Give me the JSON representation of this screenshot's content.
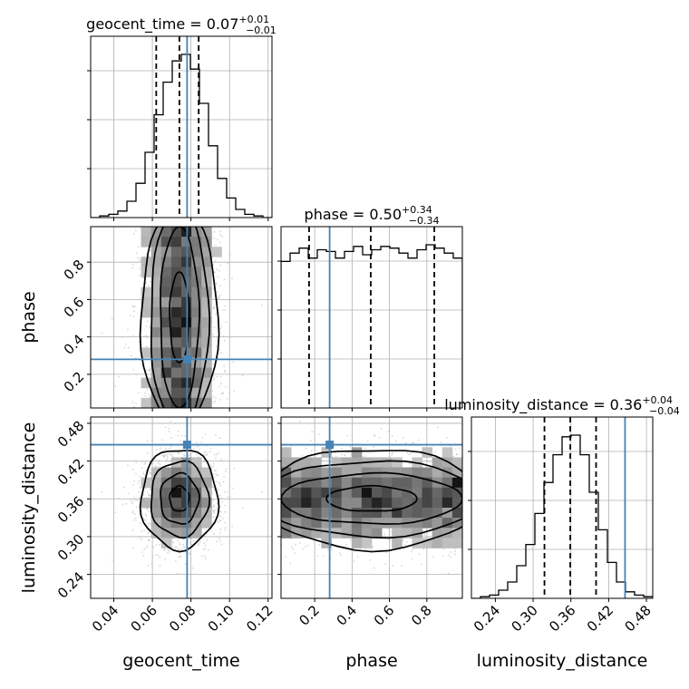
{
  "chart_data": {
    "type": "corner",
    "parameters": [
      "geocent_time",
      "phase",
      "luminosity_distance"
    ],
    "axis_labels": [
      "geocent_time",
      "phase",
      "luminosity_distance"
    ],
    "ranges": {
      "geocent_time": [
        0.028,
        0.122
      ],
      "phase": [
        0.02,
        0.99
      ],
      "luminosity_distance": [
        0.202,
        0.49
      ]
    },
    "ticks": {
      "geocent_time": [
        0.04,
        0.06,
        0.08,
        0.1,
        0.12
      ],
      "phase": [
        0.2,
        0.4,
        0.6,
        0.8
      ],
      "luminosity_distance": [
        0.24,
        0.3,
        0.36,
        0.42,
        0.48
      ]
    },
    "tick_labels": {
      "geocent_time": [
        "0.04",
        "0.06",
        "0.08",
        "0.10",
        "0.12"
      ],
      "phase": [
        "0.2",
        "0.4",
        "0.6",
        "0.8"
      ],
      "luminosity_distance": [
        "0.24",
        "0.30",
        "0.36",
        "0.42",
        "0.48"
      ]
    },
    "titles": [
      {
        "param": "geocent_time",
        "text": "geocent_time = 0.07",
        "sup": "+0.01",
        "sub": "−0.01"
      },
      {
        "param": "phase",
        "text": "phase = 0.50",
        "sup": "+0.34",
        "sub": "−0.34"
      },
      {
        "param": "luminosity_distance",
        "text": "luminosity_distance = 0.36",
        "sup": "+0.04",
        "sub": "−0.04"
      }
    ],
    "truths": {
      "geocent_time": 0.078,
      "phase": 0.28,
      "luminosity_distance": 0.446
    },
    "quantiles": {
      "geocent_time": [
        0.062,
        0.074,
        0.084
      ],
      "phase": [
        0.17,
        0.5,
        0.84
      ],
      "luminosity_distance": [
        0.318,
        0.359,
        0.4
      ]
    },
    "histograms": {
      "geocent_time": {
        "x": [
          0.028,
          0.0327,
          0.0374,
          0.0421,
          0.0468,
          0.0515,
          0.0562,
          0.0609,
          0.0656,
          0.0703,
          0.075,
          0.0797,
          0.0844,
          0.0891,
          0.0938,
          0.0985,
          0.1032,
          0.1079,
          0.1126,
          0.1173
        ],
        "density": [
          0.0,
          0.01,
          0.02,
          0.04,
          0.1,
          0.21,
          0.4,
          0.63,
          0.83,
          0.96,
          1.0,
          0.91,
          0.7,
          0.44,
          0.24,
          0.12,
          0.05,
          0.02,
          0.01,
          0.0
        ]
      },
      "phase": {
        "x": [
          0.02,
          0.0685,
          0.117,
          0.1655,
          0.214,
          0.2625,
          0.311,
          0.3595,
          0.408,
          0.4565,
          0.505,
          0.5535,
          0.602,
          0.6505,
          0.699,
          0.7475,
          0.796,
          0.8445,
          0.893,
          0.9415
        ],
        "density": [
          0.88,
          0.93,
          0.96,
          0.9,
          0.95,
          0.94,
          0.9,
          0.94,
          0.97,
          0.92,
          0.95,
          0.97,
          0.96,
          0.93,
          0.9,
          0.95,
          0.98,
          0.96,
          0.93,
          0.9
        ]
      },
      "luminosity_distance": {
        "x": [
          0.202,
          0.2164,
          0.2308,
          0.2452,
          0.2596,
          0.274,
          0.2884,
          0.3028,
          0.3172,
          0.3316,
          0.346,
          0.3604,
          0.3748,
          0.3892,
          0.4036,
          0.418,
          0.4324,
          0.4468,
          0.4612,
          0.4756
        ],
        "density": [
          0.0,
          0.01,
          0.02,
          0.05,
          0.1,
          0.2,
          0.33,
          0.52,
          0.71,
          0.88,
          0.99,
          1.0,
          0.88,
          0.65,
          0.42,
          0.22,
          0.1,
          0.04,
          0.02,
          0.01
        ]
      }
    },
    "posterior": {
      "geocent_time": {
        "mean": 0.074,
        "sd": 0.01
      },
      "phase": {
        "distribution": "uniform",
        "min": 0.02,
        "max": 0.99
      },
      "luminosity_distance": {
        "mean": 0.36,
        "sd": 0.04
      }
    },
    "grid": true,
    "colors": {
      "truth": "#4682b4",
      "contour": "#000000",
      "samples": "#bdbdbd",
      "grid": "#b0b0b0"
    }
  }
}
